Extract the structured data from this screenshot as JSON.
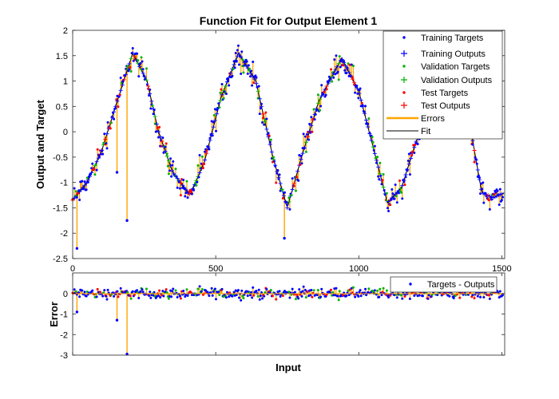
{
  "chart_data": [
    {
      "type": "scatter",
      "title": "Function Fit for Output Element 1",
      "xlabel": "",
      "ylabel": "Output and Target",
      "xlim": [
        0,
        1510
      ],
      "ylim": [
        -2.5,
        2
      ],
      "xticks": [
        0,
        500,
        1000,
        1500
      ],
      "xtick_labels": [
        "0",
        "500",
        "1000",
        "1500"
      ],
      "yticks": [
        -2.5,
        -2,
        -1.5,
        -1,
        -0.5,
        0,
        0.5,
        1,
        1.5,
        2
      ],
      "ytick_labels": [
        "-2.5",
        "-2",
        "-1.5",
        "-1",
        "-0.5",
        "0",
        "0.5",
        "1",
        "1.5",
        "2"
      ],
      "legend_position": "top-right",
      "legend": [
        "Training Targets",
        "Training Outputs",
        "Validation Targets",
        "Validation Outputs",
        "Test Targets",
        "Test Outputs",
        "Errors",
        "Fit"
      ],
      "fit": {
        "x": [
          0,
          50,
          100,
          150,
          210,
          260,
          300,
          350,
          410,
          460,
          520,
          580,
          640,
          700,
          750,
          800,
          860,
          940,
          1000,
          1050,
          1100,
          1150,
          1200,
          1260,
          1320,
          1380,
          1430,
          1470,
          1510
        ],
        "y": [
          -1.35,
          -1.0,
          -0.4,
          0.5,
          1.55,
          1.0,
          0.0,
          -0.8,
          -1.25,
          -0.6,
          0.7,
          1.55,
          1.0,
          -0.5,
          -1.5,
          -0.5,
          0.6,
          1.45,
          0.8,
          -0.3,
          -1.4,
          -1.1,
          -0.2,
          0.55,
          0.5,
          0.4,
          -1.2,
          -1.3,
          -1.2
        ]
      },
      "outliers": [
        {
          "x": 15,
          "y": -2.3
        },
        {
          "x": 155,
          "y": -0.8
        },
        {
          "x": 190,
          "y": -1.75
        },
        {
          "x": 740,
          "y": -2.1
        }
      ]
    },
    {
      "type": "scatter",
      "title": "",
      "xlabel": "Input",
      "ylabel": "Error",
      "xlim": [
        0,
        1510
      ],
      "ylim": [
        -3,
        1
      ],
      "xticks": [
        0,
        500,
        1000,
        1500
      ],
      "yticks": [
        -3,
        -2,
        -1,
        0
      ],
      "ytick_labels": [
        "-3",
        "-2",
        "-1",
        "0"
      ],
      "legend_position": "top-right",
      "legend": [
        "Targets - Outputs"
      ],
      "outliers": [
        {
          "x": 190,
          "y": -2.95
        },
        {
          "x": 155,
          "y": -1.3
        },
        {
          "x": 15,
          "y": -0.9
        }
      ]
    }
  ],
  "colors": {
    "training": "#0000ff",
    "validation": "#00b400",
    "test": "#ff0000",
    "errors": "#ffa500",
    "fit": "#000000"
  }
}
